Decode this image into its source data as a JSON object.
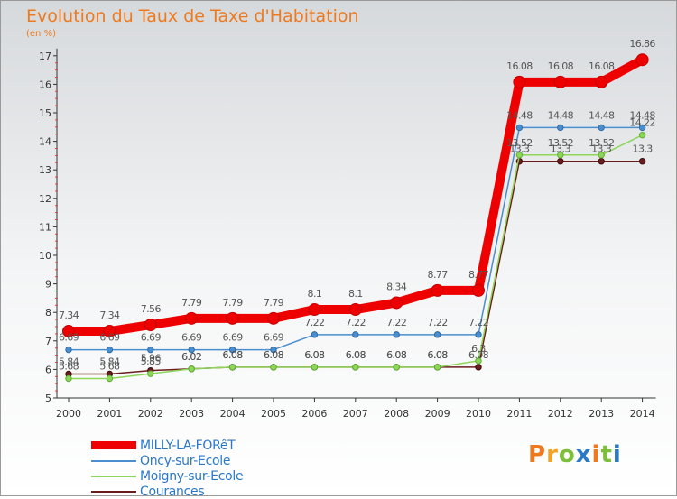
{
  "header": {
    "title": "Evolution du Taux de Taxe d'Habitation",
    "subtitle": "(en %)"
  },
  "brand": {
    "text": "Proxiti"
  },
  "colors": {
    "MILLY-LA-FORêT": "#ee0000",
    "Oncy-sur-Ecole": "#4a8ecf",
    "Moigny-sur-Ecole": "#8ed65a",
    "Courances": "#6b1c1c"
  },
  "chart_data": {
    "type": "line",
    "title": "Evolution du Taux de Taxe d'Habitation",
    "subtitle": "(en %)",
    "xlabel": "",
    "ylabel": "",
    "ylim": [
      5,
      17
    ],
    "grid": false,
    "legend": "bottom-left",
    "categories": [
      "2000",
      "2001",
      "2002",
      "2003",
      "2004",
      "2005",
      "2006",
      "2007",
      "2008",
      "2009",
      "2010",
      "2011",
      "2012",
      "2013",
      "2014"
    ],
    "series": [
      {
        "name": "MILLY-LA-FORêT",
        "values": [
          7.34,
          7.34,
          7.56,
          7.79,
          7.79,
          7.79,
          8.1,
          8.1,
          8.34,
          8.77,
          8.77,
          16.08,
          16.08,
          16.08,
          16.86
        ]
      },
      {
        "name": "Oncy-sur-Ecole",
        "values": [
          6.69,
          6.69,
          6.69,
          6.69,
          6.69,
          6.69,
          7.22,
          7.22,
          7.22,
          7.22,
          7.22,
          14.48,
          14.48,
          14.48,
          14.48
        ]
      },
      {
        "name": "Moigny-sur-Ecole",
        "values": [
          5.68,
          5.68,
          5.85,
          6.02,
          6.08,
          6.08,
          6.08,
          6.08,
          6.08,
          6.08,
          6.3,
          13.52,
          13.52,
          13.52,
          14.22
        ]
      },
      {
        "name": "Courances",
        "values": [
          5.84,
          5.84,
          5.96,
          6.02,
          6.08,
          6.08,
          6.08,
          6.08,
          6.08,
          6.08,
          6.08,
          13.3,
          13.3,
          13.3,
          13.3
        ]
      }
    ],
    "yticks": [
      "5",
      "6",
      "7",
      "8",
      "9",
      "10",
      "11",
      "12",
      "13",
      "14",
      "15",
      "16",
      "17"
    ]
  }
}
